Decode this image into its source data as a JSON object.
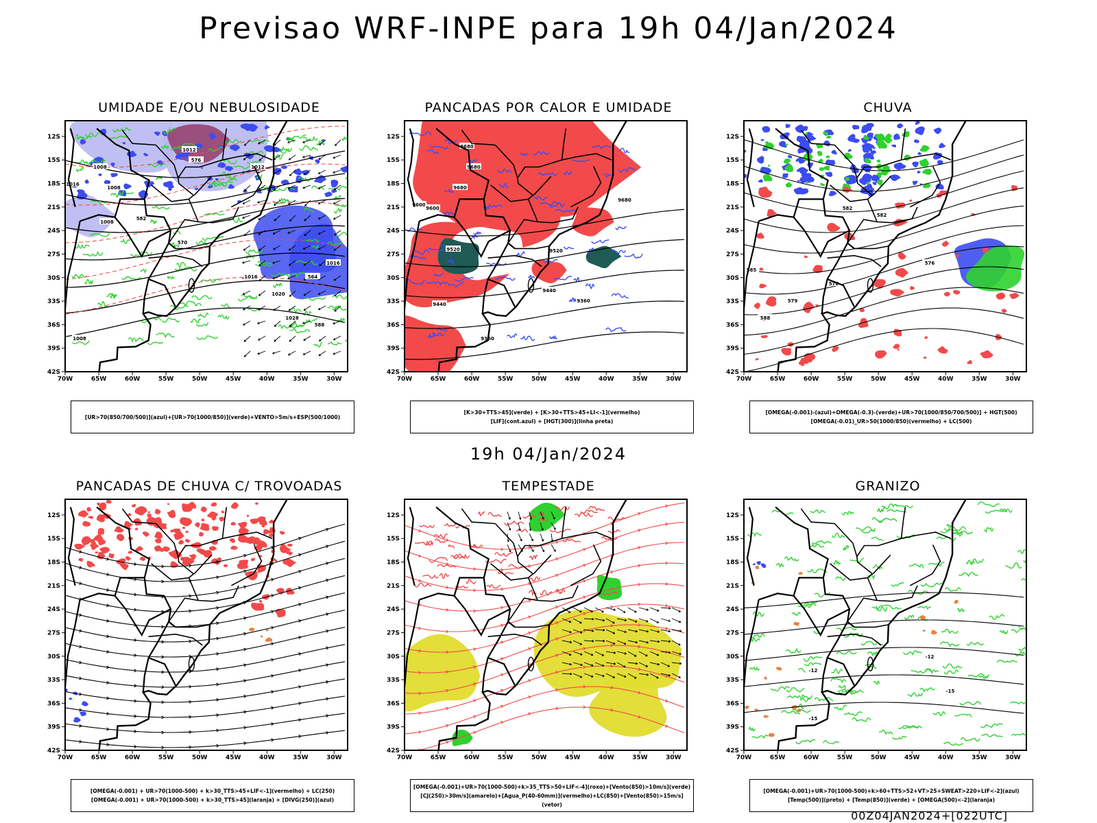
{
  "header": {
    "title": "Previsao WRF-INPE  para 19h 04/Jan/2024"
  },
  "mid_title": "19h 04/Jan/2024",
  "footer": "00Z04JAN2024+[022UTC]",
  "axes": {
    "lat_labels": [
      "12S",
      "15S",
      "18S",
      "21S",
      "24S",
      "27S",
      "30S",
      "33S",
      "36S",
      "39S",
      "42S"
    ],
    "lon_labels": [
      "70W",
      "65W",
      "60W",
      "55W",
      "50W",
      "45W",
      "40W",
      "35W",
      "30W"
    ]
  },
  "colors": {
    "red": "#f24a4a",
    "blue": "#3c4cf0",
    "green": "#2fd12f",
    "lavender": "#b8b8f2",
    "dark_teal": "#1f5a55",
    "yellow": "#e2dc2e",
    "orange": "#e8823c",
    "black": "#000000"
  },
  "panels": [
    {
      "id": "umidade",
      "title": "UMIDADE E/OU NEBULOSIDADE",
      "legend": [
        "[UR>70(850/700/500)](azul)+[UR>70(1000/850)](verde)+VENTO>5m/s+ESP(500/1000)"
      ],
      "contour_labels": [
        "1008",
        "1008",
        "1012",
        "1016",
        "1012",
        "1016",
        "1016",
        "1020",
        "1008",
        "1028",
        "1008",
        "576",
        "582",
        "570",
        "564",
        "588"
      ]
    },
    {
      "id": "pancadas_calor",
      "title": "PANCADAS POR CALOR E UMIDADE",
      "legend": [
        "[K>30+TTS>45](verde) + [K>30+TTS>45+LI<-1](vermelho)",
        "[LIF](cont.azul) + [HGT(300)](linha preta)"
      ],
      "contour_labels": [
        "9680",
        "9680",
        "9680",
        "9600",
        "9600",
        "9520",
        "9440",
        "9440",
        "9360",
        "9360",
        "9520",
        "9680"
      ]
    },
    {
      "id": "chuva",
      "title": "CHUVA",
      "legend": [
        "[OMEGA(-0.001)-(azul)+OMEGA(-0.3)-(verde)+UR>70(1000/850/700/500)] + HGT(500)",
        "[OMEGA(-0.01)_UR>50(1000/850)(vermelho) + LC(500)"
      ],
      "contour_labels": [
        "582",
        "582",
        "576",
        "576",
        "579",
        "585",
        "588"
      ]
    },
    {
      "id": "pancadas_trovoadas",
      "title": "PANCADAS DE CHUVA C/ TROVOADAS",
      "legend": [
        "[OMEGA(-0.001) + UR>70(1000-500) + k>30_TTS>45+LIF<-1](vermelho) + LC(250)",
        "[OMEGA(-0.001) + UR>70(1000-500) + k>30_TTS>45](laranja) + [DIVG(250)](azul)"
      ],
      "contour_labels": []
    },
    {
      "id": "tempestade",
      "title": "TEMPESTADE",
      "legend": [
        "[OMEGA(-0.001)+UR>70(1000-500)+k>35_TTS>50+LIF<-4](roxo)+[Vento(850)>10m/s](verde)",
        "[CJ(250)>30m/s](amarelo)+[Agua_P(40-60mm)](vermelho)+LC(850)+[Vento(850)>15m/s](vetor)"
      ],
      "contour_labels": []
    },
    {
      "id": "granizo",
      "title": "GRANIZO",
      "legend": [
        "[OMEGA(-0.001)+UR>70(1000-500)+k>60+TTS>52+VT>25+SWEAT>220+LIF<-2](azul)",
        "[Temp(500)](preto) + [Temp(850)](verde) + [OMEGA(500)<-2](laranja)"
      ],
      "contour_labels": [
        "-12",
        "-12",
        "-15",
        "-15"
      ]
    }
  ]
}
